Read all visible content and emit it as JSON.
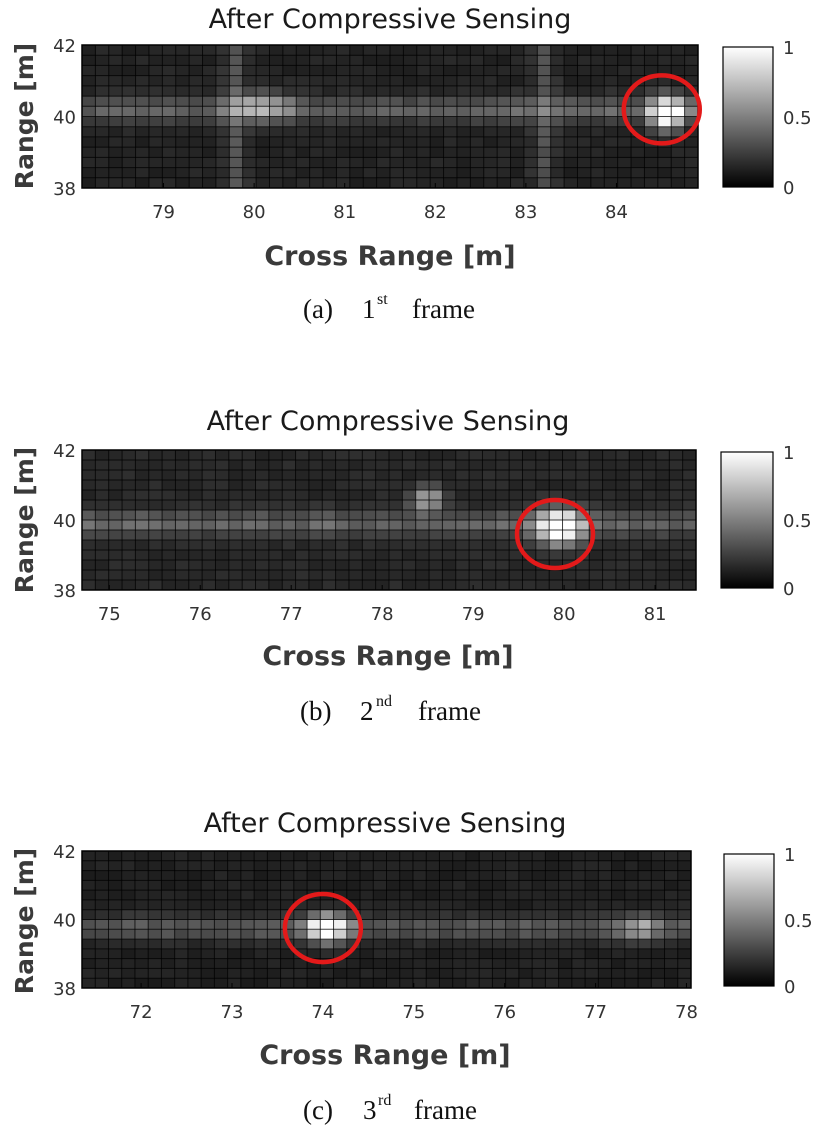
{
  "chart_data": [
    {
      "type": "heatmap",
      "title": "After Compressive Sensing",
      "xlabel": "Cross Range [m]",
      "ylabel": "Range [m]",
      "xlim": [
        78.1,
        84.9
      ],
      "ylim": [
        38,
        42
      ],
      "xticks": [
        79,
        80,
        81,
        82,
        83,
        84
      ],
      "yticks": [
        38,
        40,
        42
      ],
      "colorbar": {
        "range": [
          0,
          1
        ],
        "ticks": [
          "0",
          "0.5",
          "1"
        ],
        "colormap": "gray"
      },
      "grid": true,
      "background_level": 0.14,
      "range_band": {
        "y": 40.2,
        "intensity": 0.28
      },
      "streaks": [
        {
          "x": 79.8,
          "intensity": 0.2
        },
        {
          "x": 83.2,
          "intensity": 0.18
        }
      ],
      "hotspots": [
        {
          "x": 84.55,
          "y": 40.1,
          "intensity": 1.0,
          "sx": 0.18,
          "sy": 0.45
        },
        {
          "x": 80.1,
          "y": 40.3,
          "intensity": 0.35,
          "sx": 0.3,
          "sy": 0.4
        }
      ],
      "target_marker": {
        "x": 84.5,
        "y": 40.2,
        "color": "#e31a1a"
      },
      "caption": {
        "prefix": "(a)",
        "number": "1",
        "superscript": "st",
        "suffix": "frame"
      }
    },
    {
      "type": "heatmap",
      "title": "After Compressive Sensing",
      "xlabel": "Cross Range [m]",
      "ylabel": "Range [m]",
      "xlim": [
        74.7,
        81.45
      ],
      "ylim": [
        38,
        42
      ],
      "xticks": [
        75,
        76,
        77,
        78,
        79,
        80,
        81
      ],
      "yticks": [
        38,
        40,
        42
      ],
      "colorbar": {
        "range": [
          0,
          1
        ],
        "ticks": [
          "0",
          "0.5",
          "1"
        ],
        "colormap": "gray"
      },
      "grid": true,
      "background_level": 0.16,
      "range_band": {
        "y": 39.9,
        "intensity": 0.27
      },
      "streaks": [],
      "hotspots": [
        {
          "x": 79.95,
          "y": 39.8,
          "intensity": 1.0,
          "sx": 0.25,
          "sy": 0.5
        },
        {
          "x": 78.5,
          "y": 40.6,
          "intensity": 0.55,
          "sx": 0.18,
          "sy": 0.35
        }
      ],
      "target_marker": {
        "x": 79.9,
        "y": 39.6,
        "color": "#e31a1a"
      },
      "caption": {
        "prefix": "(b)",
        "number": "2",
        "superscript": "nd",
        "suffix": "frame"
      }
    },
    {
      "type": "heatmap",
      "title": "After Compressive Sensing",
      "xlabel": "Cross Range [m]",
      "ylabel": "Range [m]",
      "xlim": [
        71.35,
        78.05
      ],
      "ylim": [
        38,
        42
      ],
      "xticks": [
        72,
        73,
        74,
        75,
        76,
        77,
        78
      ],
      "yticks": [
        38,
        40,
        42
      ],
      "colorbar": {
        "range": [
          0,
          1
        ],
        "ticks": [
          "0",
          "0.5",
          "1"
        ],
        "colormap": "gray"
      },
      "grid": true,
      "background_level": 0.13,
      "range_band": {
        "y": 39.75,
        "intensity": 0.24
      },
      "streaks": [],
      "hotspots": [
        {
          "x": 74.05,
          "y": 39.75,
          "intensity": 1.0,
          "sx": 0.22,
          "sy": 0.4
        },
        {
          "x": 77.5,
          "y": 39.75,
          "intensity": 0.35,
          "sx": 0.2,
          "sy": 0.35
        }
      ],
      "target_marker": {
        "x": 74.0,
        "y": 39.75,
        "color": "#e31a1a"
      },
      "caption": {
        "prefix": "(c)",
        "number": "3",
        "superscript": "rd",
        "suffix": "frame"
      }
    }
  ]
}
